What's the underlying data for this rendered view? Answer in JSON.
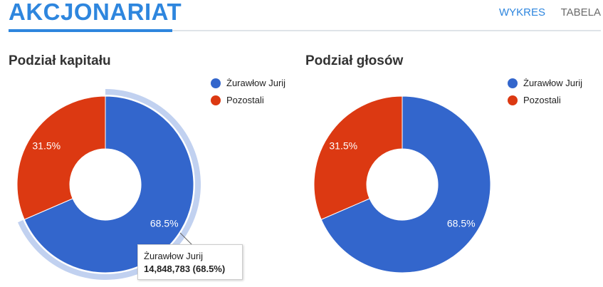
{
  "header": {
    "title": "AKCJONARIAT",
    "tabs": [
      {
        "label": "WYKRES",
        "active": true
      },
      {
        "label": "TABELA",
        "active": false
      }
    ],
    "accent_color": "#2e86de"
  },
  "chart_data": [
    {
      "type": "pie",
      "title": "Podział kapitału",
      "donut": true,
      "categories": [
        "Żurawłow Jurij",
        "Pozostali"
      ],
      "values": [
        68.5,
        31.5
      ],
      "data_labels": [
        "68.5%",
        "31.5%"
      ],
      "colors": [
        "#3366cc",
        "#dc3912"
      ],
      "legend_position": "top-right",
      "highlighted_index": 0,
      "tooltip": {
        "name": "Żurawłow Jurij",
        "value": "14,848,783 (68.5%)"
      }
    },
    {
      "type": "pie",
      "title": "Podział głosów",
      "donut": true,
      "categories": [
        "Żurawłow Jurij",
        "Pozostali"
      ],
      "values": [
        68.5,
        31.5
      ],
      "data_labels": [
        "68.5%",
        "31.5%"
      ],
      "colors": [
        "#3366cc",
        "#dc3912"
      ],
      "legend_position": "top-right"
    }
  ]
}
